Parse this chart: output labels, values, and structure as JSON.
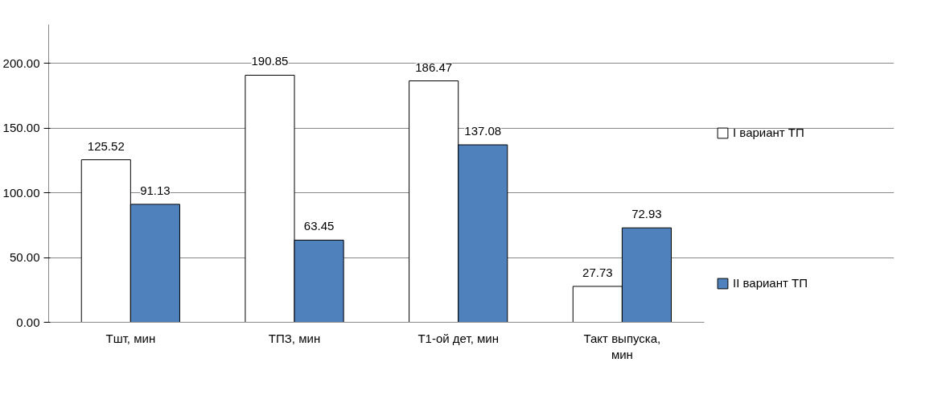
{
  "chart_data": {
    "type": "bar",
    "categories": [
      "Тшт, мин",
      "ТПЗ, мин",
      "Т1-ой дет, мин",
      "Такт выпуска, мин"
    ],
    "series": [
      {
        "name": "I вариант ТП",
        "color": "#ffffff",
        "values": [
          125.52,
          190.85,
          186.47,
          27.73
        ]
      },
      {
        "name": "II вариант ТП",
        "color": "#4f81bd",
        "values": [
          91.13,
          63.45,
          137.08,
          72.93
        ]
      }
    ],
    "ylim": [
      0,
      230
    ],
    "yticks": [
      {
        "value": 0,
        "label": "0.00"
      },
      {
        "value": 50,
        "label": "50.00"
      },
      {
        "value": 100,
        "label": "100.00"
      },
      {
        "value": 150,
        "label": "150.00"
      },
      {
        "value": 200,
        "label": "200.00"
      }
    ],
    "data_labels": true,
    "grid": "y",
    "legend": "right"
  }
}
